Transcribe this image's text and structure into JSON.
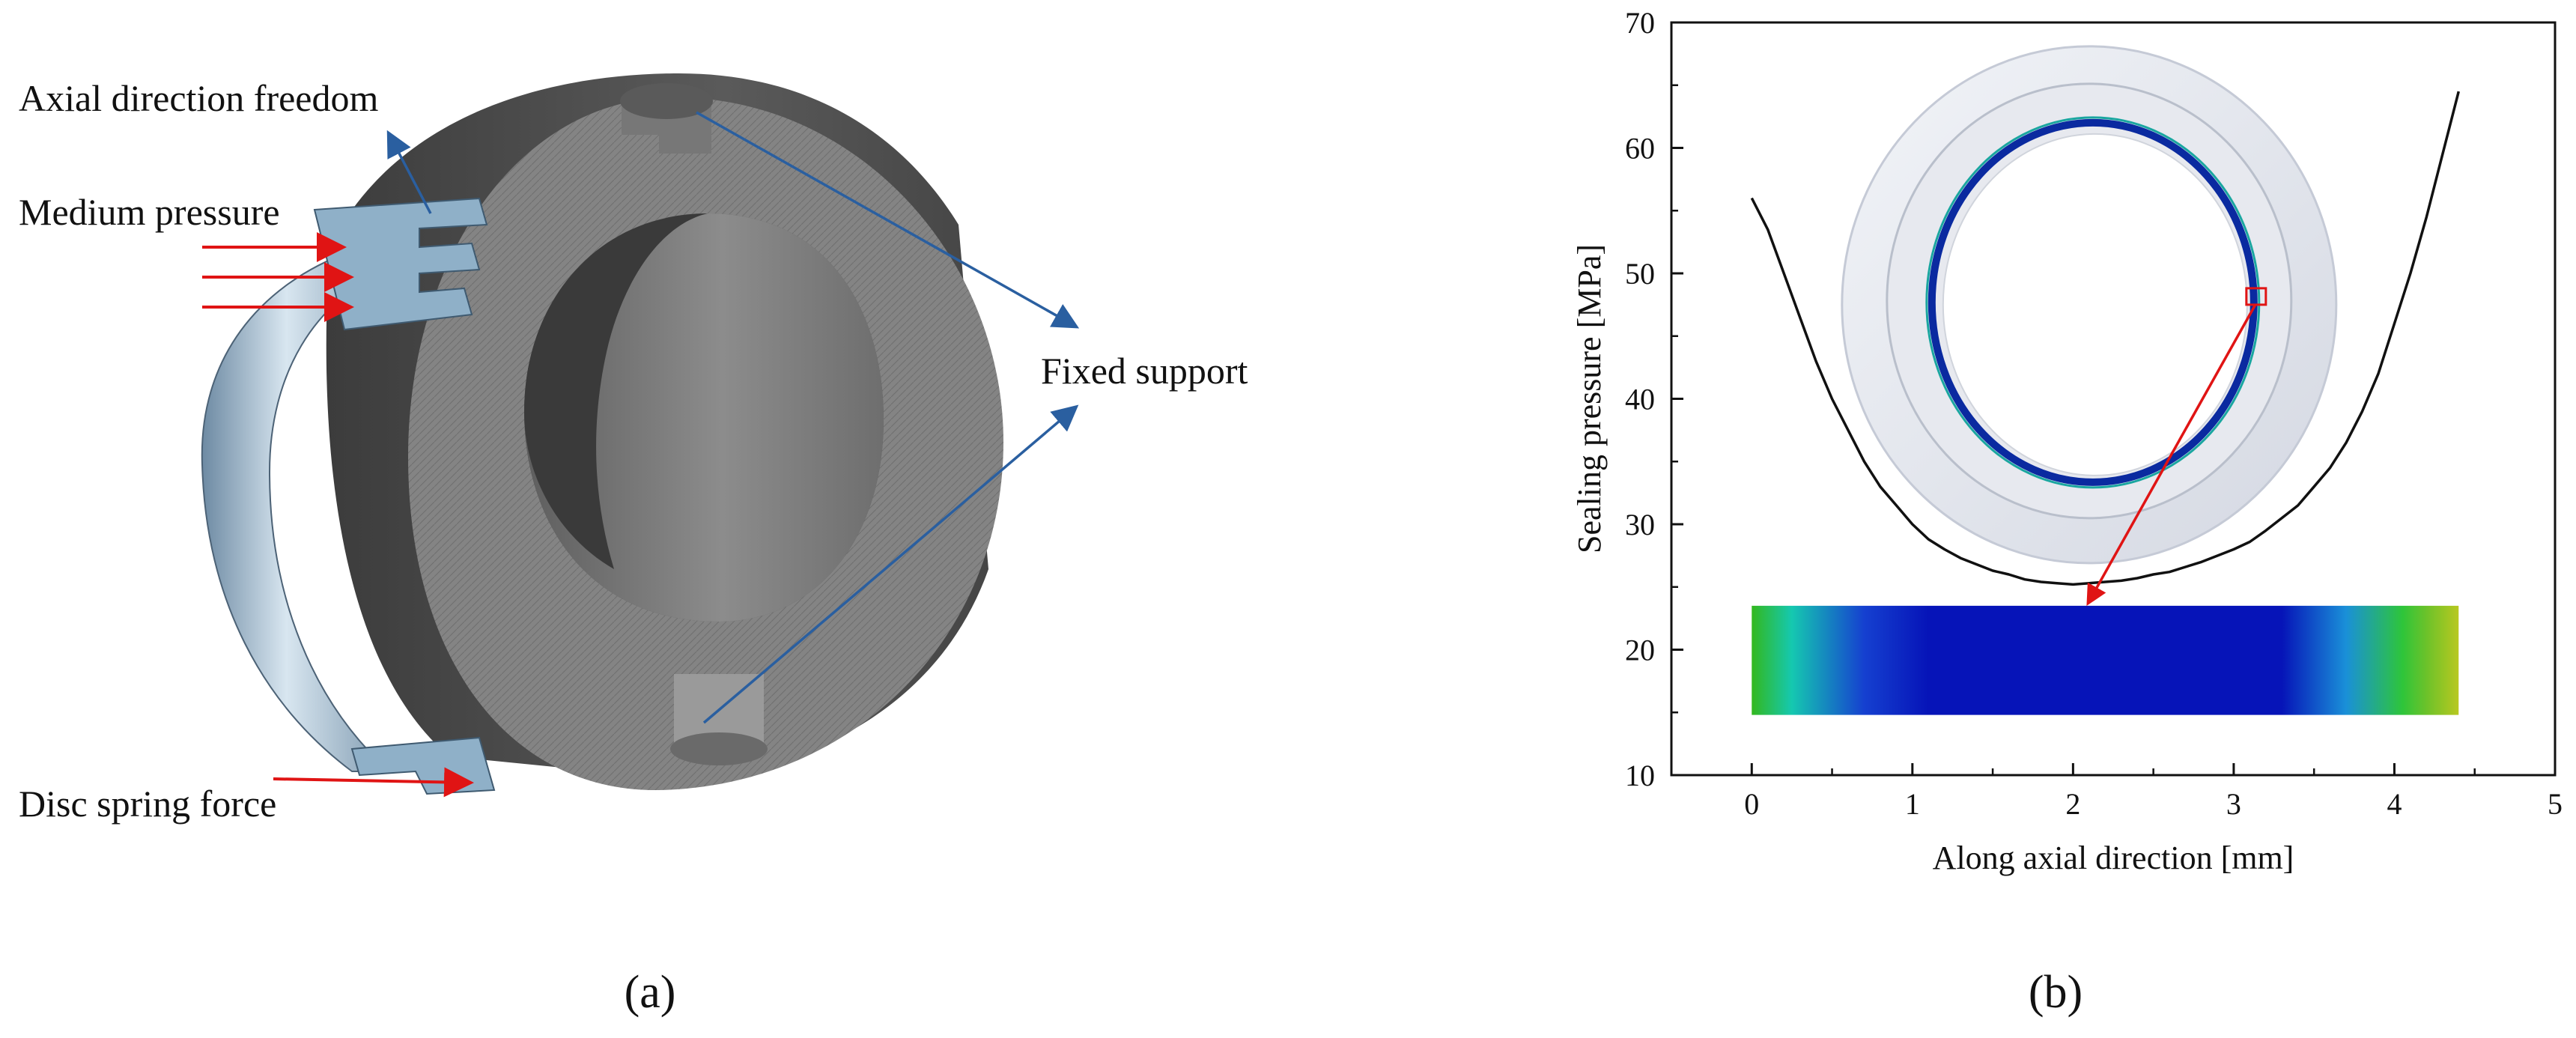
{
  "figure": {
    "panel_a": {
      "caption": "(a)",
      "labels": {
        "axial": "Axial direction freedom",
        "medium": "Medium pressure",
        "fixed": "Fixed support",
        "disc": "Disc spring force"
      },
      "colors": {
        "force_arrow": "#e01414",
        "pointer_arrow": "#2a5fa0",
        "housing_dark": "#4a4a4a",
        "housing_face": "#808080",
        "seal_ring": "#a8c0d4"
      }
    },
    "panel_b": {
      "caption": "(b)"
    }
  },
  "chart_data": {
    "type": "line",
    "title": "",
    "xlabel": "Along axial direction [mm]",
    "ylabel": "Sealing pressure [MPa]",
    "xlim": [
      -0.5,
      5
    ],
    "ylim": [
      10,
      70
    ],
    "xticks": [
      0,
      1,
      2,
      3,
      4,
      5
    ],
    "yticks": [
      10,
      20,
      30,
      40,
      50,
      60,
      70
    ],
    "grid": false,
    "legend": "none",
    "series": [
      {
        "color": "#111111",
        "x": [
          0.0,
          0.1,
          0.2,
          0.3,
          0.4,
          0.5,
          0.6,
          0.7,
          0.8,
          0.9,
          1.0,
          1.1,
          1.2,
          1.3,
          1.4,
          1.5,
          1.6,
          1.7,
          1.8,
          1.9,
          2.0,
          2.1,
          2.2,
          2.3,
          2.4,
          2.5,
          2.6,
          2.7,
          2.8,
          2.9,
          3.0,
          3.1,
          3.2,
          3.3,
          3.4,
          3.5,
          3.6,
          3.7,
          3.8,
          3.9,
          4.0,
          4.1,
          4.2,
          4.3,
          4.4
        ],
        "y": [
          56.0,
          53.5,
          50.0,
          46.5,
          43.0,
          40.0,
          37.5,
          35.0,
          33.0,
          31.5,
          30.0,
          28.8,
          28.0,
          27.3,
          26.8,
          26.3,
          26.0,
          25.6,
          25.4,
          25.3,
          25.2,
          25.3,
          25.4,
          25.5,
          25.7,
          26.0,
          26.2,
          26.6,
          27.0,
          27.5,
          28.0,
          28.6,
          29.5,
          30.5,
          31.5,
          33.0,
          34.5,
          36.5,
          39.0,
          42.0,
          46.0,
          50.0,
          54.5,
          59.5,
          64.5
        ]
      }
    ],
    "inset_heat_strip": {
      "x_range": [
        0.0,
        4.4
      ],
      "y_range": [
        14.8,
        23.5
      ],
      "colormap": "contact-pressure (green-cyan-blue)",
      "stops": [
        {
          "x": 0.0,
          "color": "#33b81e"
        },
        {
          "x": 0.25,
          "color": "#15c8b0"
        },
        {
          "x": 0.7,
          "color": "#1540d0"
        },
        {
          "x": 1.1,
          "color": "#0614b8"
        },
        {
          "x": 3.3,
          "color": "#0614b8"
        },
        {
          "x": 3.7,
          "color": "#1a90d8"
        },
        {
          "x": 4.05,
          "color": "#2ec53a"
        },
        {
          "x": 4.2,
          "color": "#6cc22a"
        },
        {
          "x": 4.4,
          "color": "#b8c820"
        }
      ]
    },
    "inset_ring": {
      "center": [
        2.1,
        47.5
      ],
      "highlight_color": "#e01414",
      "ring_color": "#0a2aa0"
    }
  }
}
